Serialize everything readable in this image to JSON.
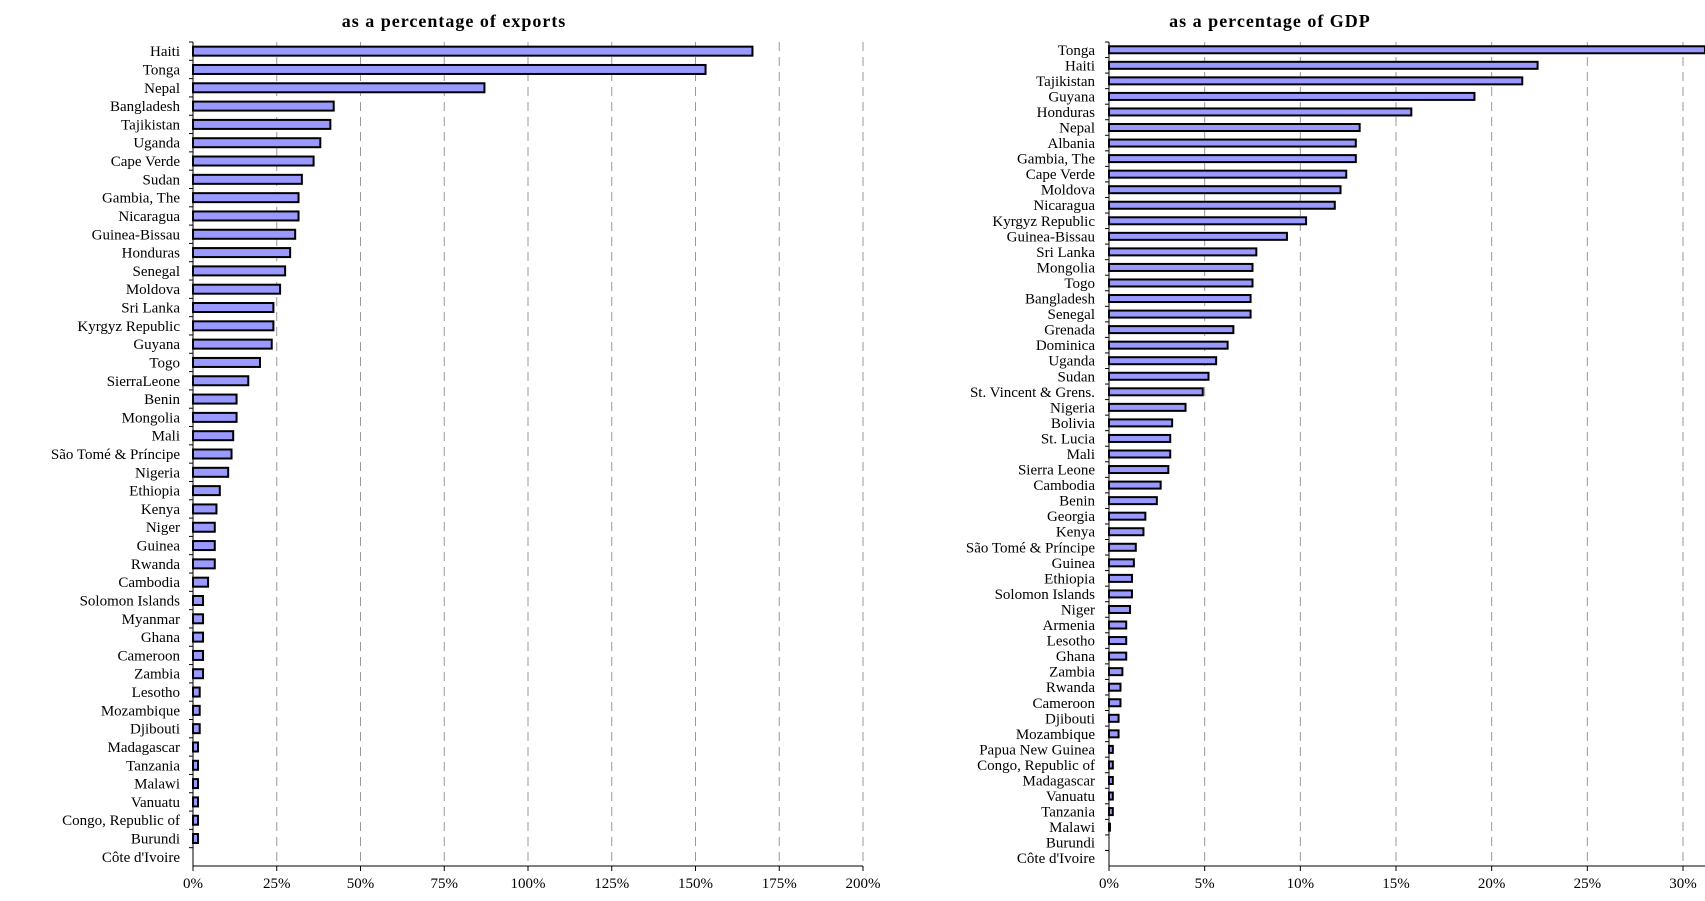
{
  "chart_data": [
    {
      "type": "bar",
      "orientation": "horizontal",
      "title": "as a percentage of exports",
      "categories": [
        "Haiti",
        "Tonga",
        "Nepal",
        "Bangladesh",
        "Tajikistan",
        "Uganda",
        "Cape Verde",
        "Sudan",
        "Gambia, The",
        "Nicaragua",
        "Guinea-Bissau",
        "Honduras",
        "Senegal",
        "Moldova",
        "Sri Lanka",
        "Kyrgyz Republic",
        "Guyana",
        "Togo",
        "SierraLeone",
        "Benin",
        "Mongolia",
        "Mali",
        "São Tomé & Príncipe",
        "Nigeria",
        "Ethiopia",
        "Kenya",
        "Niger",
        "Guinea",
        "Rwanda",
        "Cambodia",
        "Solomon Islands",
        "Myanmar",
        "Ghana",
        "Cameroon",
        "Zambia",
        "Lesotho",
        "Mozambique",
        "Djibouti",
        "Madagascar",
        "Tanzania",
        "Malawi",
        "Vanuatu",
        "Congo, Republic of",
        "Burundi",
        "Côte d'Ivoire"
      ],
      "values": [
        167,
        153,
        87,
        42,
        41,
        38,
        36,
        32.5,
        31.5,
        31.5,
        30.5,
        29,
        27.5,
        26,
        24,
        24,
        23.5,
        20,
        16.5,
        13,
        13,
        12,
        11.5,
        10.5,
        8,
        7,
        6.5,
        6.5,
        6.5,
        4.5,
        3,
        3,
        3,
        3,
        3,
        2,
        2,
        2,
        1.5,
        1.5,
        1.5,
        1.5,
        1.5,
        1.5,
        0
      ],
      "xlim": [
        0,
        200
      ],
      "xticks": [
        "0%",
        "25%",
        "50%",
        "75%",
        "100%",
        "125%",
        "150%",
        "175%",
        "200%"
      ],
      "grid": "vertical dashed"
    },
    {
      "type": "bar",
      "orientation": "horizontal",
      "title": "as a percentage of GDP",
      "categories": [
        "Tonga",
        "Haiti",
        "Tajikistan",
        "Guyana",
        "Honduras",
        "Nepal",
        "Albania",
        "Gambia, The",
        "Cape Verde",
        "Moldova",
        "Nicaragua",
        "Kyrgyz Republic",
        "Guinea-Bissau",
        "Sri Lanka",
        "Mongolia",
        "Togo",
        "Bangladesh",
        "Senegal",
        "Grenada",
        "Dominica",
        "Uganda",
        "Sudan",
        "St. Vincent & Grens.",
        "Nigeria",
        "Bolivia",
        "St. Lucia",
        "Mali",
        "Sierra Leone",
        "Cambodia",
        "Benin",
        "Georgia",
        "Kenya",
        "São Tomé & Príncipe",
        "Guinea",
        "Ethiopia",
        "Solomon Islands",
        "Niger",
        "Armenia",
        "Lesotho",
        "Ghana",
        "Zambia",
        "Rwanda",
        "Cameroon",
        "Djibouti",
        "Mozambique",
        "Papua New Guinea",
        "Congo, Republic of",
        "Madagascar",
        "Vanuatu",
        "Tanzania",
        "Malawi",
        "Burundi",
        "Côte d'Ivoire"
      ],
      "values": [
        31,
        22.4,
        21.6,
        19.1,
        15.8,
        13.1,
        12.9,
        12.9,
        12.4,
        12.1,
        11.8,
        10.3,
        9.3,
        7.7,
        7.5,
        7.5,
        7.4,
        7.4,
        6.5,
        6.2,
        5.6,
        5.2,
        4.9,
        4.0,
        3.3,
        3.2,
        3.2,
        3.1,
        2.7,
        2.5,
        1.9,
        1.8,
        1.4,
        1.3,
        1.2,
        1.2,
        1.1,
        0.9,
        0.9,
        0.9,
        0.7,
        0.6,
        0.6,
        0.5,
        0.5,
        0.2,
        0.2,
        0.2,
        0.2,
        0.2,
        0.05,
        0,
        0
      ],
      "xlim": [
        0,
        30
      ],
      "xticks": [
        "0%",
        "5%",
        "10%",
        "15%",
        "20%",
        "25%",
        "30%"
      ],
      "grid": "vertical dashed"
    }
  ]
}
